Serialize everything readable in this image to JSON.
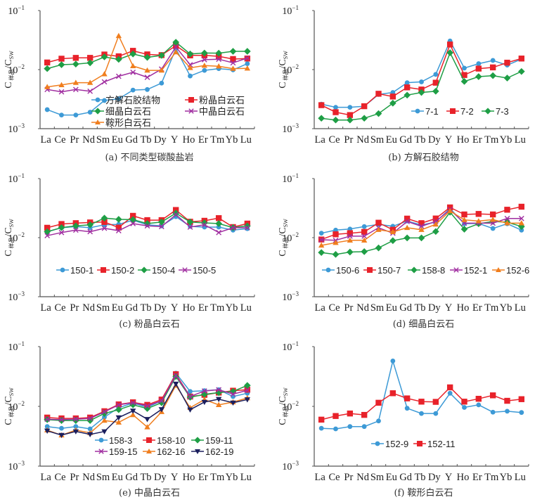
{
  "figure": {
    "categories": [
      "La",
      "Ce",
      "Pr",
      "Nd",
      "Sm",
      "Eu",
      "Gd",
      "Tb",
      "Dy",
      "Y",
      "Ho",
      "Er",
      "Tm",
      "Yb",
      "Lu"
    ],
    "ylabel_main": "C",
    "ylabel_sub1": "样品",
    "ylabel_mid": "/C",
    "ylabel_sub2": "SW",
    "ytick_base": "10",
    "ytick_exps": [
      "−1",
      "−2",
      "−3"
    ]
  },
  "series_styles": {
    "blue": {
      "color": "#3d9ad6",
      "marker": "circle"
    },
    "red": {
      "color": "#e8222a",
      "marker": "square"
    },
    "green": {
      "color": "#1e9e45",
      "marker": "diamond"
    },
    "purple": {
      "color": "#a02ea0",
      "marker": "x"
    },
    "orange": {
      "color": "#f07e1e",
      "marker": "triangle"
    },
    "navy": {
      "color": "#1b1f5e",
      "marker": "triangle-down"
    }
  },
  "chart_data": [
    {
      "type": "line",
      "title": "(a) 不同类型碳酸盐岩",
      "yscale": "log",
      "ylim": [
        0.001,
        0.1
      ],
      "xlabel": "",
      "ylabel": "C样品/CSW",
      "legend_position": "bottom-right",
      "legend_layout": "2col",
      "series": [
        {
          "name": "方解石胶结物",
          "style": "blue",
          "values": [
            0.0021,
            0.0017,
            0.0017,
            0.0019,
            0.003,
            0.0032,
            0.0045,
            0.0046,
            0.0059,
            0.0226,
            0.0078,
            0.0097,
            0.0104,
            0.0099,
            0.0126
          ]
        },
        {
          "name": "粉晶白云石",
          "style": "red",
          "values": [
            0.0132,
            0.0153,
            0.0158,
            0.0158,
            0.018,
            0.0168,
            0.0208,
            0.0181,
            0.0176,
            0.0254,
            0.0174,
            0.0174,
            0.0168,
            0.0151,
            0.0154
          ]
        },
        {
          "name": "细晶白云石",
          "style": "green",
          "values": [
            0.0104,
            0.0121,
            0.0124,
            0.013,
            0.0164,
            0.0149,
            0.0184,
            0.0161,
            0.0174,
            0.0291,
            0.0184,
            0.0191,
            0.019,
            0.0204,
            0.0204
          ]
        },
        {
          "name": "中晶白云石",
          "style": "purple",
          "values": [
            0.0046,
            0.0042,
            0.0046,
            0.0043,
            0.0062,
            0.0077,
            0.009,
            0.0074,
            0.0102,
            0.0242,
            0.0121,
            0.0147,
            0.015,
            0.013,
            0.0157
          ]
        },
        {
          "name": "鞍形白云石",
          "style": "orange",
          "values": [
            0.0051,
            0.0055,
            0.006,
            0.006,
            0.0084,
            0.0373,
            0.0115,
            0.0097,
            0.0097,
            0.0198,
            0.0107,
            0.0117,
            0.0114,
            0.0104,
            0.0105
          ]
        }
      ]
    },
    {
      "type": "line",
      "title": "(b) 方解石胶结物",
      "yscale": "log",
      "ylim": [
        0.001,
        0.1
      ],
      "xlabel": "",
      "ylabel": "C样品/CSW",
      "legend_position": "bottom-right",
      "legend_layout": "row",
      "series": [
        {
          "name": "7-1",
          "style": "blue",
          "values": [
            0.0026,
            0.0023,
            0.0023,
            0.0024,
            0.0038,
            0.0041,
            0.006,
            0.0062,
            0.0083,
            0.0305,
            0.0106,
            0.0126,
            0.0143,
            0.0119,
            0.0151
          ]
        },
        {
          "name": "7-2",
          "style": "red",
          "values": [
            0.0025,
            0.0019,
            0.0017,
            0.0024,
            0.0039,
            0.0035,
            0.005,
            0.0046,
            0.006,
            0.0266,
            0.0081,
            0.0104,
            0.0109,
            0.0131,
            0.0154
          ]
        },
        {
          "name": "7-3",
          "style": "green",
          "values": [
            0.0015,
            0.0014,
            0.0014,
            0.0015,
            0.0018,
            0.0027,
            0.0037,
            0.0041,
            0.0043,
            0.0193,
            0.0063,
            0.0076,
            0.0079,
            0.0072,
            0.0093
          ]
        }
      ]
    },
    {
      "type": "line",
      "title": "(c) 粉晶白云石",
      "yscale": "log",
      "ylim": [
        0.001,
        0.1
      ],
      "xlabel": "",
      "ylabel": "C样品/CSW",
      "legend_position": "middle",
      "legend_layout": "row",
      "series": [
        {
          "name": "150-1",
          "style": "blue",
          "values": [
            0.0126,
            0.0147,
            0.0154,
            0.0147,
            0.0165,
            0.0168,
            0.0198,
            0.0165,
            0.0158,
            0.0227,
            0.0155,
            0.0151,
            0.0151,
            0.0134,
            0.0142
          ]
        },
        {
          "name": "150-2",
          "style": "red",
          "values": [
            0.0147,
            0.017,
            0.0176,
            0.0181,
            0.0184,
            0.0148,
            0.0234,
            0.0198,
            0.0198,
            0.0294,
            0.0186,
            0.0193,
            0.0214,
            0.0151,
            0.0173
          ]
        },
        {
          "name": "150-4",
          "style": "green",
          "values": [
            0.0126,
            0.0148,
            0.0158,
            0.0165,
            0.0214,
            0.0204,
            0.0202,
            0.0173,
            0.0184,
            0.026,
            0.0184,
            0.0178,
            0.0173,
            0.0148,
            0.0158
          ]
        },
        {
          "name": "150-5",
          "style": "purple",
          "values": [
            0.0108,
            0.0122,
            0.0134,
            0.0126,
            0.0144,
            0.0131,
            0.0173,
            0.0158,
            0.0154,
            0.0245,
            0.0151,
            0.0165,
            0.0122,
            0.0147,
            0.0147
          ]
        }
      ]
    },
    {
      "type": "line",
      "title": "(d) 细晶白云石",
      "yscale": "log",
      "ylim": [
        0.001,
        0.1
      ],
      "xlabel": "",
      "ylabel": "C样品/CSW",
      "legend_position": "middle",
      "legend_layout": "row",
      "series": [
        {
          "name": "150-6",
          "style": "blue",
          "values": [
            0.0119,
            0.0134,
            0.014,
            0.0154,
            0.0168,
            0.0156,
            0.0191,
            0.0164,
            0.0184,
            0.031,
            0.0172,
            0.0174,
            0.0143,
            0.0172,
            0.0134
          ]
        },
        {
          "name": "150-7",
          "style": "red",
          "values": [
            0.0093,
            0.0114,
            0.0119,
            0.0125,
            0.0179,
            0.0136,
            0.021,
            0.0176,
            0.0211,
            0.0325,
            0.0247,
            0.0252,
            0.0247,
            0.0297,
            0.0334
          ]
        },
        {
          "name": "158-8",
          "style": "green",
          "values": [
            0.0056,
            0.0052,
            0.0057,
            0.0058,
            0.0067,
            0.0089,
            0.0099,
            0.0099,
            0.0127,
            0.027,
            0.0139,
            0.0172,
            0.0188,
            0.0183,
            0.0154
          ]
        },
        {
          "name": "152-1",
          "style": "purple",
          "values": [
            0.0092,
            0.009,
            0.0106,
            0.0106,
            0.0147,
            0.0119,
            0.0188,
            0.0156,
            0.0188,
            0.0297,
            0.0176,
            0.0176,
            0.0176,
            0.0211,
            0.0211
          ]
        },
        {
          "name": "152-6",
          "style": "orange",
          "values": [
            0.0074,
            0.0082,
            0.009,
            0.009,
            0.0136,
            0.0125,
            0.0147,
            0.0136,
            0.0168,
            0.0283,
            0.02,
            0.0191,
            0.0202,
            0.0176,
            0.0176
          ]
        }
      ]
    },
    {
      "type": "line",
      "title": "(e) 中晶白云石",
      "yscale": "log",
      "ylim": [
        0.001,
        0.1
      ],
      "xlabel": "",
      "ylabel": "C样品/CSW",
      "legend_position": "bottom-right",
      "legend_layout": "3col",
      "series": [
        {
          "name": "158-3",
          "style": "blue",
          "values": [
            0.0046,
            0.0043,
            0.0046,
            0.0042,
            0.0066,
            0.0095,
            0.0114,
            0.0096,
            0.0124,
            0.036,
            0.0178,
            0.0183,
            0.019,
            0.0146,
            0.0166
          ]
        },
        {
          "name": "158-10",
          "style": "red",
          "values": [
            0.0065,
            0.0063,
            0.0063,
            0.0065,
            0.0083,
            0.0108,
            0.0117,
            0.0106,
            0.013,
            0.0345,
            0.0146,
            0.0156,
            0.017,
            0.0183,
            0.019
          ]
        },
        {
          "name": "159-11",
          "style": "green",
          "values": [
            0.006,
            0.0058,
            0.0058,
            0.0058,
            0.0076,
            0.0088,
            0.0106,
            0.0092,
            0.0115,
            0.0316,
            0.0142,
            0.0159,
            0.017,
            0.0178,
            0.0224
          ]
        },
        {
          "name": "159-15",
          "style": "purple",
          "values": [
            0.0061,
            0.006,
            0.0061,
            0.0063,
            0.0081,
            0.0106,
            0.0115,
            0.0102,
            0.0124,
            0.0329,
            0.0146,
            0.0181,
            0.019,
            0.016,
            0.0186
          ]
        },
        {
          "name": "162-16",
          "style": "orange",
          "values": [
            0.004,
            0.0033,
            0.004,
            0.0036,
            0.0058,
            0.0054,
            0.0072,
            0.0045,
            0.0081,
            0.0224,
            0.0095,
            0.013,
            0.0106,
            0.0118,
            0.0138
          ]
        },
        {
          "name": "162-19",
          "style": "navy",
          "values": [
            0.0039,
            0.0033,
            0.0038,
            0.0034,
            0.0038,
            0.0065,
            0.0084,
            0.0061,
            0.0089,
            0.0238,
            0.0088,
            0.0118,
            0.0132,
            0.0115,
            0.013
          ]
        }
      ]
    },
    {
      "type": "line",
      "title": "(f) 鞍形白云石",
      "yscale": "log",
      "ylim": [
        0.001,
        0.1
      ],
      "xlabel": "",
      "ylabel": "C样品/CSW",
      "legend_position": "bottom-center",
      "legend_layout": "row",
      "series": [
        {
          "name": "152-9",
          "style": "blue",
          "values": [
            0.0043,
            0.0042,
            0.0046,
            0.0046,
            0.0057,
            0.0576,
            0.0093,
            0.0076,
            0.0076,
            0.0166,
            0.0096,
            0.0106,
            0.008,
            0.0083,
            0.0079
          ]
        },
        {
          "name": "152-11",
          "style": "red",
          "values": [
            0.006,
            0.0069,
            0.0076,
            0.0072,
            0.0115,
            0.0166,
            0.0136,
            0.012,
            0.0119,
            0.0208,
            0.012,
            0.0134,
            0.0153,
            0.0124,
            0.0132
          ]
        }
      ]
    }
  ]
}
